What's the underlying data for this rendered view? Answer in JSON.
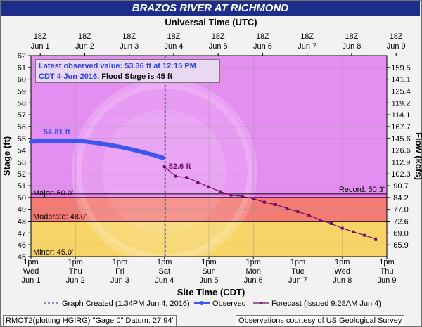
{
  "title": "BRAZOS RIVER AT RICHMOND",
  "top_axis_title": "Universal Time (UTC)",
  "bottom_axis_title": "Site Time (CDT)",
  "left_axis_title": "Stage (ft)",
  "right_axis_title": "Flow (kcfs)",
  "notice": {
    "line1": "Latest observed value: 53.36 ft at 12:15 PM",
    "line2_blue": "CDT 4-Jun-2016.",
    "line2_black": " Flood Stage is 45 ft"
  },
  "legend": {
    "created": "Graph Created (1:34PM Jun 4, 2016)",
    "observed": "Observed",
    "forecast": "Forecast (issued 9:28AM Jun 4)"
  },
  "footer_left": "RMOT2(plotting HGIRG) \"Gage 0\" Datum: 27.94'",
  "footer_right": "Observations courtesy of US Geological Survey",
  "colors": {
    "title_bg": "#1c2e8a",
    "normal_zone": "#e58ef2",
    "minor_zone": "#f8d468",
    "moderate_zone": "#f47a74",
    "major_zone": "#f27aef",
    "observed": "#3d56ef",
    "forecast": "#6f0f65"
  },
  "chart_data": {
    "type": "line",
    "x_start": "Jun 1 1pm CDT",
    "x_units": "hours",
    "top_ticks": [
      {
        "l1": "18Z",
        "l2": "Jun 1"
      },
      {
        "l1": "18Z",
        "l2": "Jun 2"
      },
      {
        "l1": "18Z",
        "l2": "Jun 3"
      },
      {
        "l1": "18Z",
        "l2": "Jun 4"
      },
      {
        "l1": "18Z",
        "l2": "Jun 5"
      },
      {
        "l1": "18Z",
        "l2": "Jun 6"
      },
      {
        "l1": "18Z",
        "l2": "Jun 7"
      },
      {
        "l1": "18Z",
        "l2": "Jun 8"
      },
      {
        "l1": "18Z",
        "l2": "Jun 9"
      }
    ],
    "bottom_ticks": [
      {
        "l1": "1pm",
        "l2": "Wed",
        "l3": "Jun 1"
      },
      {
        "l1": "1pm",
        "l2": "Thu",
        "l3": "Jun 2"
      },
      {
        "l1": "1pm",
        "l2": "Fri",
        "l3": "Jun 3"
      },
      {
        "l1": "1pm",
        "l2": "Sat",
        "l3": "Jun 4"
      },
      {
        "l1": "1pm",
        "l2": "Sun",
        "l3": "Jun 5"
      },
      {
        "l1": "1pm",
        "l2": "Mon",
        "l3": "Jun 6"
      },
      {
        "l1": "1pm",
        "l2": "Tue",
        "l3": "Jun 7"
      },
      {
        "l1": "1pm",
        "l2": "Wed",
        "l3": "Jun 8"
      },
      {
        "l1": "1pm",
        "l2": "Thu",
        "l3": "Jun 9"
      }
    ],
    "ylim": [
      45,
      62
    ],
    "y_ticks": [
      45,
      46,
      47,
      48,
      49,
      50,
      51,
      52,
      53,
      54,
      55,
      56,
      57,
      58,
      59,
      60,
      61,
      62
    ],
    "flow_ticks": [
      {
        "stage": 46,
        "label": "65.9"
      },
      {
        "stage": 47,
        "label": "69.0"
      },
      {
        "stage": 48,
        "label": "72.6"
      },
      {
        "stage": 49,
        "label": "77.0"
      },
      {
        "stage": 50,
        "label": "84.2"
      },
      {
        "stage": 51,
        "label": "90.7"
      },
      {
        "stage": 52,
        "label": "102.3"
      },
      {
        "stage": 53,
        "label": "112.9"
      },
      {
        "stage": 54,
        "label": "126.6"
      },
      {
        "stage": 55,
        "label": "145.6"
      },
      {
        "stage": 56,
        "label": "167.7"
      },
      {
        "stage": 57,
        "label": "114.1"
      },
      {
        "stage": 58,
        "label": "119.2"
      },
      {
        "stage": 59,
        "label": "125.4"
      },
      {
        "stage": 60,
        "label": "141.1"
      },
      {
        "stage": 61,
        "label": "159.5"
      }
    ],
    "flood_categories": [
      {
        "name": "Minor",
        "label": "Minor: 45.0'",
        "stage": 45
      },
      {
        "name": "Moderate",
        "label": "Moderate: 48.0'",
        "stage": 48
      },
      {
        "name": "Major",
        "label": "Major: 50.0'",
        "stage": 50
      }
    ],
    "record": {
      "label": "Record: 50.3'",
      "stage": 50.3
    },
    "graph_created_hour": 72.5,
    "observed": {
      "peak_label": "54.81 ft",
      "points": [
        [
          0,
          54.72
        ],
        [
          6,
          54.78
        ],
        [
          12,
          54.8
        ],
        [
          18,
          54.81
        ],
        [
          24,
          54.79
        ],
        [
          30,
          54.72
        ],
        [
          36,
          54.6
        ],
        [
          42,
          54.45
        ],
        [
          48,
          54.28
        ],
        [
          54,
          54.08
        ],
        [
          60,
          53.85
        ],
        [
          66,
          53.6
        ],
        [
          71,
          53.36
        ]
      ]
    },
    "forecast": {
      "start_label": "52.6 ft",
      "points": [
        [
          72,
          52.6
        ],
        [
          78,
          51.8
        ],
        [
          84,
          51.7
        ],
        [
          90,
          51.3
        ],
        [
          96,
          50.9
        ],
        [
          102,
          50.5
        ],
        [
          108,
          50.2
        ],
        [
          114,
          50.1
        ],
        [
          120,
          49.9
        ],
        [
          126,
          49.6
        ],
        [
          132,
          49.4
        ],
        [
          138,
          49.1
        ],
        [
          144,
          48.8
        ],
        [
          150,
          48.5
        ],
        [
          156,
          48.1
        ],
        [
          162,
          47.8
        ],
        [
          168,
          47.4
        ],
        [
          174,
          47.1
        ],
        [
          180,
          46.8
        ],
        [
          186,
          46.5
        ]
      ]
    }
  }
}
